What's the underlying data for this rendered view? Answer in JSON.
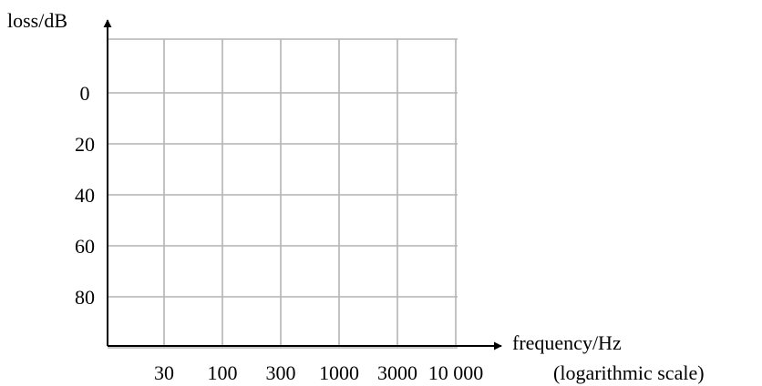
{
  "chart_data": {
    "type": "line",
    "title": "",
    "ylabel": "loss/dB",
    "xlabel": "frequency/Hz",
    "x_scale": "log",
    "x_scale_note": "(logarithmic scale)",
    "x_ticks": [
      30,
      100,
      300,
      1000,
      3000,
      10000
    ],
    "x_tick_labels": [
      "30",
      "100",
      "300",
      "1000",
      "3000",
      "10 000"
    ],
    "y_ticks": [
      0,
      20,
      40,
      60,
      80
    ],
    "y_tick_labels": [
      "0",
      "20",
      "40",
      "60",
      "80"
    ],
    "y_inverted": true,
    "grid": true,
    "series": []
  }
}
